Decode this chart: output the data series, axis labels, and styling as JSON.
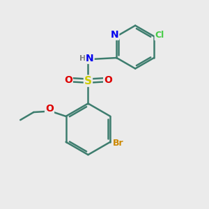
{
  "background_color": "#ebebeb",
  "atom_colors": {
    "C": "#3d7d6e",
    "H": "#808080",
    "N": "#0000ee",
    "O": "#dd0000",
    "S": "#cccc00",
    "Br": "#cc8800",
    "Cl": "#44cc44"
  },
  "bond_color": "#3d7d6e",
  "bond_width": 1.8
}
